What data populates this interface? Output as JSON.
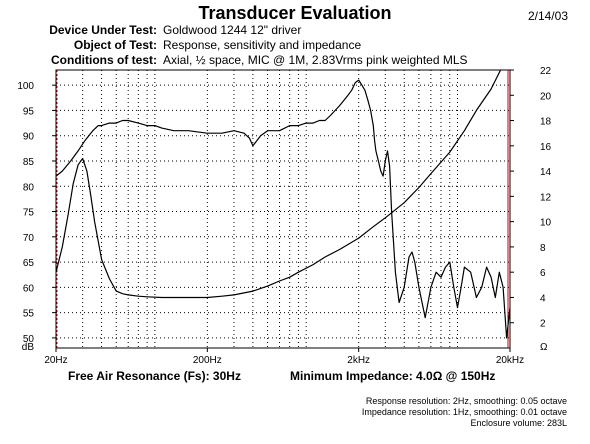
{
  "header": {
    "title": "Transducer Evaluation",
    "date": "2/14/03"
  },
  "info": [
    {
      "label": "Device Under Test:",
      "value": "Goldwood 1244 12\" driver"
    },
    {
      "label": "Object of Test:",
      "value": "Response, sensitivity and impedance"
    },
    {
      "label": "Conditions of test:",
      "value": "Axial, ½ space, MIC @ 1M, 2.83Vrms pink weighted MLS"
    }
  ],
  "summary": {
    "fs": "Free Air Resonance (Fs): 30Hz",
    "zmin": "Minimum Impedance: 4.0Ω @ 150Hz"
  },
  "notes": [
    "Response resolution: 2Hz, smoothing: 0.05 octave",
    "Impedance resolution: 1Hz, smoothing: 0.01 octave",
    "Enclosure volume: 283L"
  ],
  "colors": {
    "axis": "#000000",
    "grid": "#000000",
    "left_marker": "#cc0000",
    "right_marker": "#cc0000",
    "trace": "#000000"
  },
  "chart_data": {
    "type": "line",
    "xscale": "log",
    "xlim": [
      20,
      20000
    ],
    "xticks": [
      {
        "value": 20,
        "label": "20Hz"
      },
      {
        "value": 200,
        "label": "200Hz"
      },
      {
        "value": 2000,
        "label": "2kHz"
      },
      {
        "value": 20000,
        "label": "20kHz"
      }
    ],
    "ylim_left": [
      48,
      103
    ],
    "yticks_left": [
      50,
      55,
      60,
      65,
      70,
      75,
      80,
      85,
      90,
      95,
      100
    ],
    "ylabel_left": "dB",
    "ylim_right": [
      0,
      22
    ],
    "yticks_right": [
      2,
      4,
      6,
      8,
      10,
      12,
      14,
      16,
      18,
      20,
      22
    ],
    "ylabel_right": "Ω",
    "grid": true,
    "series": [
      {
        "axis": "left",
        "x": [
          20,
          22,
          25,
          28,
          31,
          35,
          38,
          40,
          45,
          50,
          55,
          60,
          70,
          80,
          90,
          100,
          120,
          150,
          200,
          250,
          300,
          350,
          380,
          400,
          450,
          500,
          600,
          700,
          800,
          900,
          1000,
          1100,
          1200,
          1300,
          1400,
          1500,
          1600,
          1700,
          1800,
          1900,
          2000,
          2100,
          2200,
          2300,
          2400,
          2500,
          2550,
          2600,
          2700,
          2800,
          2900,
          3000,
          3100,
          3200,
          3300,
          3500,
          3700,
          4000,
          4300,
          4500,
          4700,
          5000,
          5500,
          6000,
          6500,
          7000,
          7500,
          8000,
          8500,
          9000,
          9500,
          10000,
          11000,
          12000,
          13000,
          14000,
          15000,
          16000,
          17000,
          18000,
          19000,
          20000
        ],
        "y": [
          82,
          83,
          85,
          87,
          89,
          91,
          92,
          92,
          92.5,
          92.5,
          93,
          93,
          92.5,
          92,
          92,
          91.5,
          91,
          91,
          90.5,
          90.5,
          91,
          90.5,
          89.5,
          88,
          90,
          91,
          91,
          92,
          92,
          92.5,
          92.5,
          93,
          93,
          94,
          95,
          96,
          97,
          98,
          99,
          100.5,
          101,
          100,
          99,
          97,
          95,
          92,
          89,
          87,
          85,
          83,
          82,
          85,
          87,
          84,
          75,
          63,
          57,
          60,
          66,
          67,
          65,
          60,
          54,
          60,
          63,
          62,
          64,
          65,
          60,
          56,
          60,
          64,
          63,
          58,
          60,
          64,
          62,
          58,
          63,
          60,
          50,
          56
        ]
      },
      {
        "axis": "right",
        "x": [
          20,
          22,
          24,
          26,
          28,
          30,
          32,
          34,
          36,
          40,
          45,
          50,
          55,
          60,
          70,
          80,
          100,
          120,
          150,
          200,
          250,
          300,
          400,
          500,
          600,
          700,
          800,
          1000,
          1200,
          1500,
          2000,
          2500,
          3000,
          4000,
          5000,
          6000,
          8000,
          10000,
          12000,
          15000,
          20000
        ],
        "y": [
          6,
          8,
          10.5,
          13,
          14.5,
          15,
          14,
          12,
          10,
          7,
          5.5,
          4.5,
          4.3,
          4.2,
          4.1,
          4.05,
          4.0,
          4.0,
          4.0,
          4.0,
          4.1,
          4.2,
          4.5,
          4.9,
          5.3,
          5.6,
          6,
          6.6,
          7.2,
          7.8,
          8.7,
          9.6,
          10.3,
          11.5,
          12.7,
          13.8,
          15.5,
          17.2,
          18.8,
          20.5,
          23.5
        ]
      }
    ]
  }
}
